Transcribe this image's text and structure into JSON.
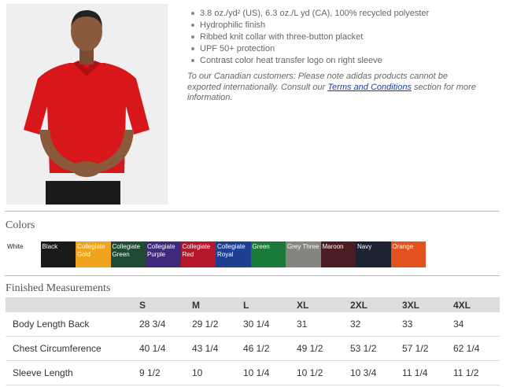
{
  "features": [
    "3.8 oz./yd² (US), 6.3 oz./L yd (CA), 100% recycled polyester",
    "Hydrophilic finish",
    "Ribbed knit collar with three-button placket",
    "UPF 50+ protection",
    "Contrast color heat transfer logo on right sleeve"
  ],
  "note": {
    "before": "To our Canadian customers: Please note adidas products cannot be exported internationally. Consult our ",
    "link": "Terms and Conditions",
    "after": " section for more information."
  },
  "colors": {
    "title": "Colors",
    "swatches": [
      {
        "label": "White",
        "color": "#ffffff"
      },
      {
        "label": "Black",
        "color": "#1a1a1a"
      },
      {
        "label": "Collegiate Gold",
        "color": "#f0a31c"
      },
      {
        "label": "Collegiate Green",
        "color": "#1f4a34"
      },
      {
        "label": "Collegiate Purple",
        "color": "#3f2a7c"
      },
      {
        "label": "Collegiate Red",
        "color": "#b5172a"
      },
      {
        "label": "Collegiate Royal",
        "color": "#1f3f93"
      },
      {
        "label": "Green",
        "color": "#1b7a3a"
      },
      {
        "label": "Grey Three",
        "color": "#86857f"
      },
      {
        "label": "Maroon",
        "color": "#4a1d22"
      },
      {
        "label": "Navy",
        "color": "#1d2233"
      },
      {
        "label": "Orange",
        "color": "#e2521e"
      }
    ]
  },
  "measurements": {
    "title": "Finished Measurements",
    "header": [
      "S",
      "M",
      "L",
      "XL",
      "2XL",
      "3XL",
      "4XL"
    ],
    "rows": [
      [
        "Body Length Back",
        "28 3/4",
        "29 1/2",
        "30 1/4",
        "31",
        "32",
        "33",
        "34"
      ],
      [
        "Chest Circumference",
        "40 1/4",
        "43 1/4",
        "46 1/2",
        "49 1/2",
        "53 1/2",
        "57 1/2",
        "62 1/4"
      ],
      [
        "Sleeve Length",
        "9 1/2",
        "10",
        "10 1/4",
        "10 1/2",
        "10 3/4",
        "11 1/4",
        "11 1/2"
      ]
    ]
  }
}
